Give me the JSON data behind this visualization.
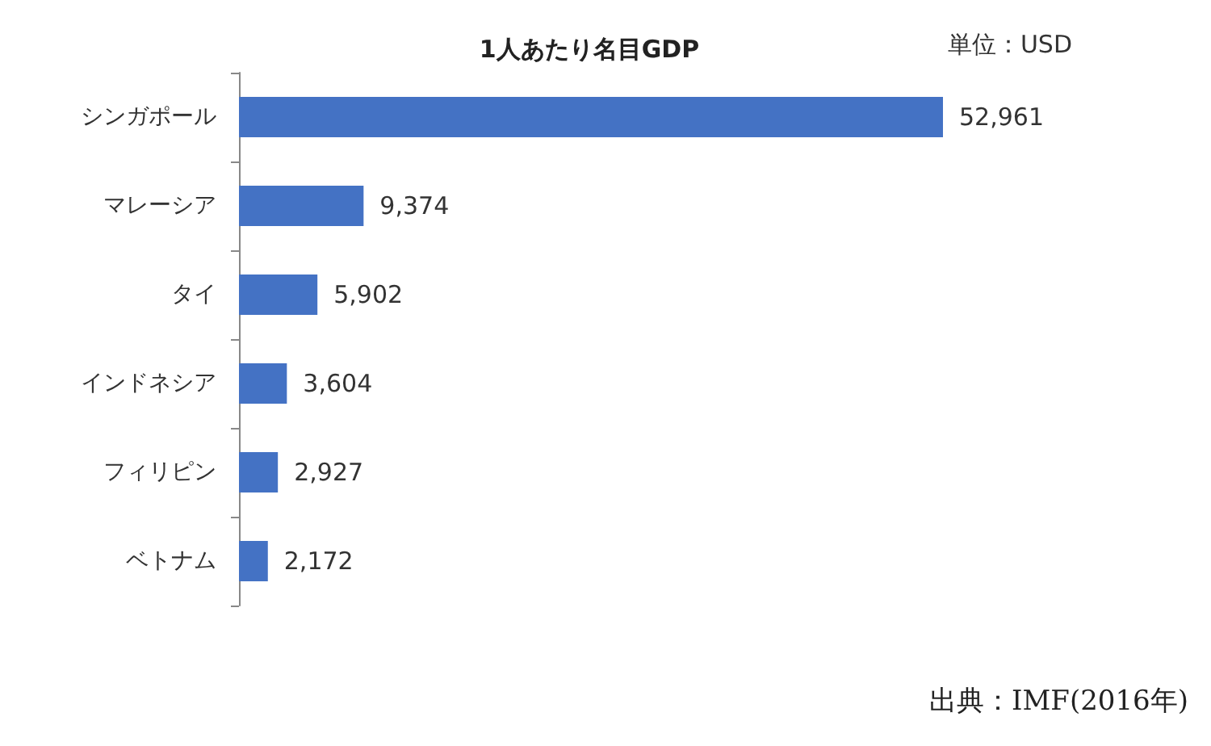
{
  "chart_data": {
    "type": "bar",
    "orientation": "horizontal",
    "title": "1人あたり名目GDP",
    "categories": [
      "シンガポール",
      "マレーシア",
      "タイ",
      "インドネシア",
      "フィリピン",
      "ベトナム"
    ],
    "values": [
      52961,
      9374,
      5902,
      3604,
      2927,
      2172
    ],
    "value_labels": [
      "52,961",
      "9,374",
      "5,902",
      "3,604",
      "2,927",
      "2,172"
    ],
    "color": "#4472c4",
    "grid": false,
    "annotations": [
      "単位：USD",
      "出典：IMF(2016年)"
    ]
  }
}
